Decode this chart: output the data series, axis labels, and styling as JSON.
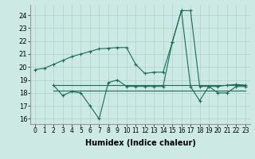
{
  "xlabel": "Humidex (Indice chaleur)",
  "background_color": "#cce9e4",
  "grid_color": "#aad4cc",
  "line_color": "#1a6b5a",
  "xlim": [
    -0.5,
    23.5
  ],
  "ylim": [
    15.6,
    24.8
  ],
  "yticks": [
    16,
    17,
    18,
    19,
    20,
    21,
    22,
    23,
    24
  ],
  "xticks": [
    0,
    1,
    2,
    3,
    4,
    5,
    6,
    7,
    8,
    9,
    10,
    11,
    12,
    13,
    14,
    15,
    16,
    17,
    18,
    19,
    20,
    21,
    22,
    23
  ],
  "series1_x": [
    0,
    1,
    2,
    3,
    4,
    5,
    6,
    7,
    8,
    9,
    10,
    11,
    12,
    13,
    14,
    15,
    16,
    17,
    18,
    19,
    20,
    21,
    22,
    23
  ],
  "series1_y": [
    19.8,
    19.9,
    20.2,
    20.5,
    20.8,
    21.0,
    21.2,
    21.4,
    21.45,
    21.5,
    21.5,
    20.2,
    19.5,
    19.6,
    19.6,
    21.9,
    24.35,
    24.35,
    18.5,
    18.5,
    18.5,
    18.6,
    18.65,
    18.6
  ],
  "series2_x": [
    2,
    3,
    4,
    5,
    6,
    7,
    8,
    9,
    10,
    11,
    12,
    13,
    14,
    15,
    16,
    17,
    18,
    19,
    20,
    21,
    22,
    23
  ],
  "series2_y": [
    18.6,
    17.8,
    18.1,
    18.0,
    17.0,
    16.0,
    18.8,
    19.0,
    18.5,
    18.5,
    18.5,
    18.5,
    18.5,
    21.9,
    24.35,
    18.5,
    17.4,
    18.5,
    18.0,
    18.0,
    18.5,
    18.5
  ],
  "series3_x": [
    2,
    3,
    4,
    5,
    6,
    7,
    8,
    9,
    10,
    11,
    12,
    13,
    14,
    15,
    16,
    17,
    18,
    19,
    20,
    21,
    22,
    23
  ],
  "series3_y": [
    18.6,
    18.6,
    18.6,
    18.6,
    18.6,
    18.6,
    18.6,
    18.6,
    18.6,
    18.6,
    18.6,
    18.6,
    18.6,
    18.6,
    18.6,
    18.6,
    18.6,
    18.6,
    18.6,
    18.6,
    18.6,
    18.6
  ],
  "series4_x": [
    2,
    3,
    4,
    5,
    6,
    7,
    8,
    9,
    10,
    11,
    12,
    13,
    14,
    15,
    16,
    17,
    18,
    19,
    20,
    21,
    22,
    23
  ],
  "series4_y": [
    18.2,
    18.2,
    18.2,
    18.2,
    18.2,
    18.2,
    18.2,
    18.2,
    18.2,
    18.2,
    18.2,
    18.2,
    18.2,
    18.2,
    18.2,
    18.2,
    18.2,
    18.2,
    18.2,
    18.2,
    18.2,
    18.2
  ]
}
